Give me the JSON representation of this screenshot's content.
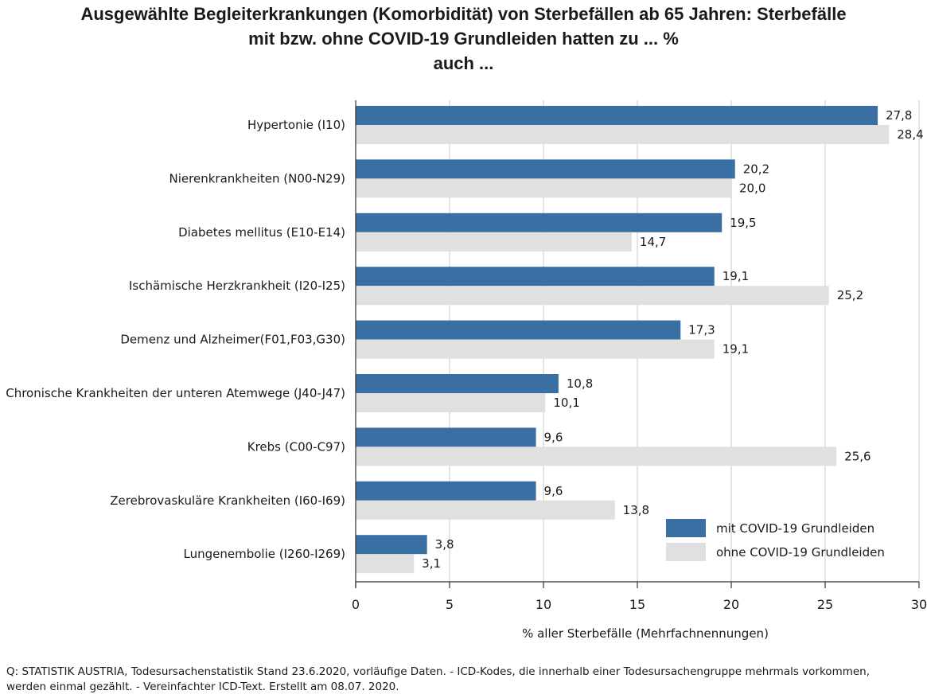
{
  "title_lines": [
    "Ausgewählte Begleiterkrankungen (Komorbidität) von Sterbefällen ab 65 Jahren: Sterbefälle",
    "mit bzw. ohne COVID-19 Grundleiden hatten zu ... %",
    "auch ..."
  ],
  "source_lines": [
    "Q: STATISTIK AUSTRIA, Todesursachenstatistik Stand 23.6.2020, vorläufige Daten. - ICD-Kodes, die innerhalb einer Todesursachengruppe mehrmals vorkommen,",
    "werden einmal gezählt.  - Vereinfachter  ICD-Text. Erstellt am 08.07. 2020."
  ],
  "colors": {
    "with": "#3a6fa3",
    "without": "#e0e0e0",
    "grid": "#c8c8c8",
    "axis": "#333333"
  },
  "chart_data": {
    "type": "bar",
    "orientation": "horizontal",
    "xlabel": "% aller Sterbefälle (Mehrfachnennungen)",
    "xlim": [
      0,
      30
    ],
    "xticks": [
      "0",
      "5",
      "10",
      "15",
      "20",
      "25",
      "30"
    ],
    "grid": true,
    "legend": "bottom-right",
    "categories": [
      "Hypertonie (I10)",
      "Nierenkrankheiten (N00-N29)",
      "Diabetes mellitus (E10-E14)",
      "Ischämische Herzkrankheit (I20-I25)",
      "Demenz und Alzheimer(F01,F03,G30)",
      "Chronische Krankheiten der unteren Atemwege (J40-J47)",
      "Krebs (C00-C97)",
      "Zerebrovaskuläre Krankheiten (I60-I69)",
      "Lungenembolie (I260-I269)"
    ],
    "series": [
      {
        "name": "mit COVID-19 Grundleiden",
        "values": [
          27.8,
          20.2,
          19.5,
          19.1,
          17.3,
          10.8,
          9.6,
          9.6,
          3.8
        ],
        "labels": [
          "27,8",
          "20,2",
          "19,5",
          "19,1",
          "17,3",
          "10,8",
          "9,6",
          "9,6",
          "3,8"
        ]
      },
      {
        "name": "ohne COVID-19 Grundleiden",
        "values": [
          28.4,
          20.0,
          14.7,
          25.2,
          19.1,
          10.1,
          25.6,
          13.8,
          3.1
        ],
        "labels": [
          "28,4",
          "20,0",
          "14,7",
          "25,2",
          "19,1",
          "10,1",
          "25,6",
          "13,8",
          "3,1"
        ]
      }
    ]
  }
}
